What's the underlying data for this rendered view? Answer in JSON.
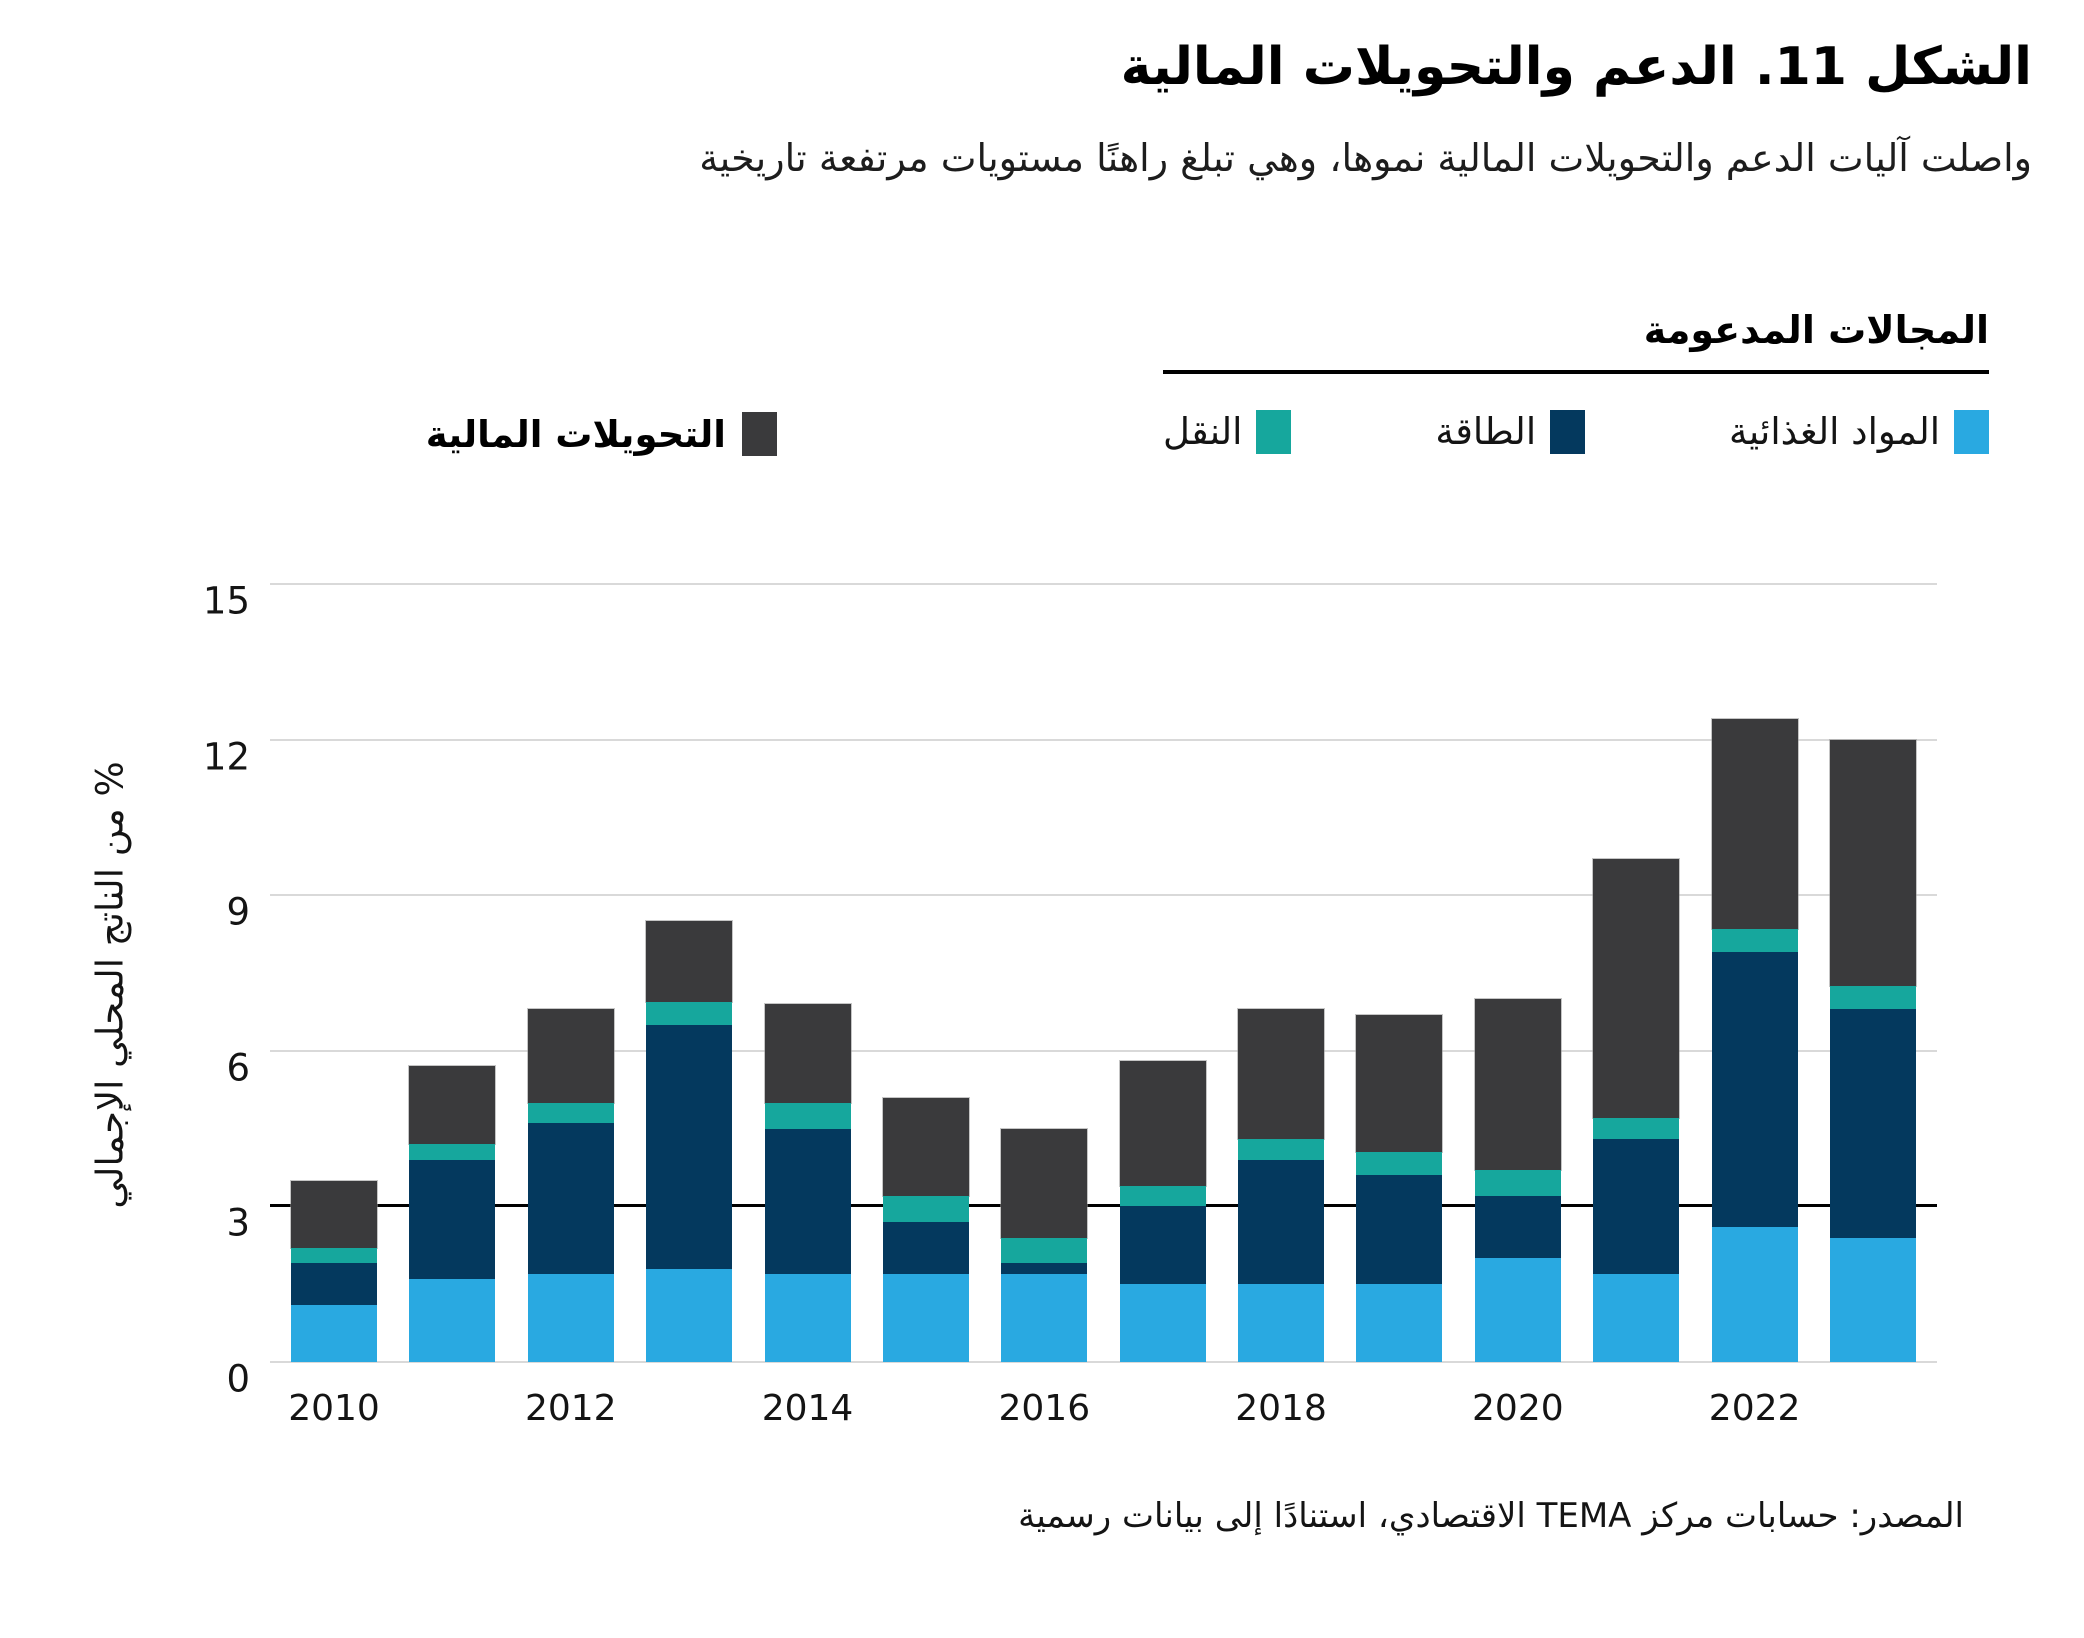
{
  "header": {
    "title": "الشكل 11. الدعم والتحويلات المالية",
    "subtitle": "واصلت آليات الدعم والتحويلات المالية نموها، وهي تبلغ راهنًا مستويات مرتفعة تاريخية"
  },
  "legend": {
    "supported_areas_title": "المجالات المدعومة"
  },
  "chart_data": {
    "type": "bar",
    "stacked": true,
    "title": "الشكل 11. الدعم والتحويلات المالية",
    "xlabel": "",
    "ylabel": "% من الناتج المحلي الإجمالي",
    "ylim": [
      0,
      15
    ],
    "yticks": [
      0,
      3,
      6,
      9,
      12,
      15
    ],
    "reference_line": 3,
    "grid": true,
    "legend_position": "top",
    "categories": [
      2010,
      2011,
      2012,
      2013,
      2014,
      2015,
      2016,
      2017,
      2018,
      2019,
      2020,
      2021,
      2022,
      2023
    ],
    "x_tick_labels": [
      "2010",
      "2012",
      "2014",
      "2016",
      "2018",
      "2020",
      "2022"
    ],
    "series": [
      {
        "key": "food",
        "name": "المواد الغذائية",
        "color": "#29A9E1",
        "values": [
          1.1,
          1.6,
          1.7,
          1.8,
          1.7,
          1.7,
          1.7,
          1.5,
          1.5,
          1.5,
          2.0,
          1.7,
          2.6,
          2.4
        ]
      },
      {
        "key": "energy",
        "name": "الطاقة",
        "color": "#04395E",
        "values": [
          0.8,
          2.3,
          2.9,
          4.7,
          2.8,
          1.0,
          0.2,
          1.5,
          2.4,
          2.1,
          1.2,
          2.6,
          5.3,
          4.4
        ]
      },
      {
        "key": "transport",
        "name": "النقل",
        "color": "#16A79D",
        "values": [
          0.3,
          0.3,
          0.4,
          0.45,
          0.5,
          0.5,
          0.5,
          0.4,
          0.4,
          0.45,
          0.5,
          0.4,
          0.45,
          0.45
        ]
      },
      {
        "key": "transfers",
        "name": "التحويلات المالية",
        "color": "#3A3A3C",
        "values": [
          1.3,
          1.5,
          1.8,
          1.55,
          1.9,
          1.9,
          2.1,
          2.4,
          2.5,
          2.65,
          3.3,
          5.0,
          4.05,
          4.75
        ]
      }
    ],
    "totals": [
      3.5,
      5.7,
      6.8,
      8.5,
      6.9,
      5.1,
      4.5,
      5.8,
      6.8,
      6.7,
      7.0,
      9.7,
      12.4,
      12.0
    ]
  },
  "source": "المصدر: حسابات مركز TEMA الاقتصادي، استنادًا إلى بيانات رسمية"
}
